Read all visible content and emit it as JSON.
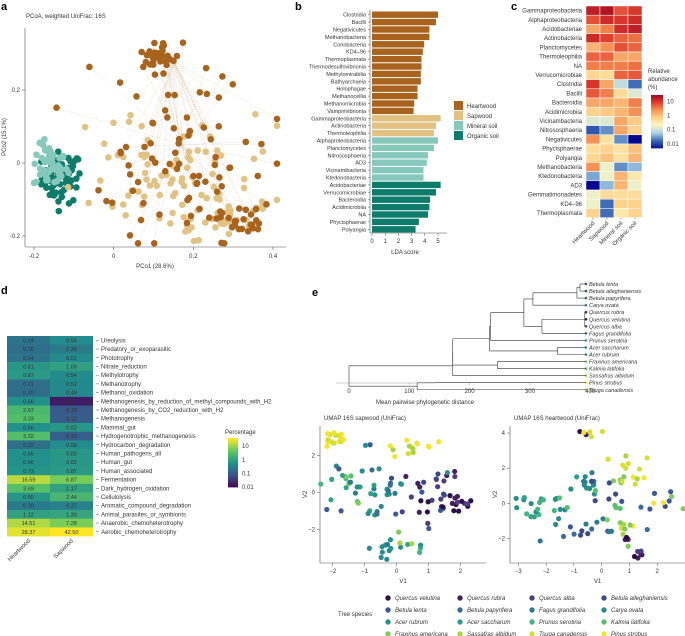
{
  "chart_data": [
    {
      "panel": "a",
      "type": "scatter",
      "title": "PCoA, weighted UniFrac: 16S",
      "xlabel": "PCo1 (28.6%)",
      "ylabel": "PCo2 (15.1%)",
      "xlim": [
        -0.22,
        0.44
      ],
      "ylim": [
        -0.23,
        0.35
      ],
      "xticks": [
        "-0.2",
        "0",
        "0.2",
        "0.4"
      ],
      "yticks": [
        "-0.2",
        "0",
        "0.2"
      ],
      "series": [
        {
          "name": "Organic soil",
          "color": "#0e7c6b",
          "cluster": {
            "cx": -0.13,
            "cy": -0.04,
            "sx": 0.025,
            "sy": 0.035,
            "n": 70
          }
        },
        {
          "name": "Mineral soil",
          "color": "#86c9bc",
          "cluster": {
            "cx": -0.16,
            "cy": -0.01,
            "sx": 0.022,
            "sy": 0.03,
            "n": 50
          }
        },
        {
          "name": "Sapwood",
          "color": "#e2c283",
          "cluster": {
            "cx": 0.12,
            "cy": -0.02,
            "sx": 0.1,
            "sy": 0.1,
            "n": 110
          }
        },
        {
          "name": "Heartwood",
          "color": "#a8631d",
          "cluster": {
            "cx": 0.17,
            "cy": 0.02,
            "sx": 0.11,
            "sy": 0.13,
            "n": 130
          }
        }
      ]
    },
    {
      "panel": "b",
      "type": "bar",
      "orientation": "horizontal",
      "xlabel": "LDA score",
      "xlim": [
        0,
        5.5
      ],
      "xticks": [
        "0",
        "1",
        "2",
        "3",
        "4",
        "5"
      ],
      "legend": [
        {
          "label": "Heartwood",
          "color": "#a8631d"
        },
        {
          "label": "Sapwood",
          "color": "#e2c283"
        },
        {
          "label": "Mineral soil",
          "color": "#86c9bc"
        },
        {
          "label": "Organic soil",
          "color": "#0e7c6b"
        }
      ],
      "legend_position": "right",
      "categories": [
        "Clostridia",
        "Bacilli",
        "Negativicutes",
        "Methanobacteria",
        "Coriobacteria",
        "KD4–96",
        "Thermoplasmata",
        "Thermodesulfovibrionia",
        "Methylomirabilia",
        "Bathyarchaeia",
        "Holophagae",
        "Methanocellia",
        "Methanomicrobia",
        "Vampirivibrionia",
        "Gammaproteobacteria",
        "Actinobacteria",
        "Thermoleophilia",
        "Alphaproteobacteria",
        "Planctomycetes",
        "Nitrososphaeria",
        "AD3",
        "Vicinamibacteria",
        "Ktedonobacteria",
        "Acidobacteriae",
        "Verrucomicrobiae",
        "Bacteroidia",
        "Acidimicrobiia",
        "NA",
        "Phycisphaerae",
        "Polyangia"
      ],
      "groups": [
        "Heartwood",
        "Heartwood",
        "Heartwood",
        "Heartwood",
        "Heartwood",
        "Heartwood",
        "Heartwood",
        "Heartwood",
        "Heartwood",
        "Heartwood",
        "Heartwood",
        "Heartwood",
        "Heartwood",
        "Heartwood",
        "Sapwood",
        "Sapwood",
        "Sapwood",
        "Mineral soil",
        "Mineral soil",
        "Mineral soil",
        "Mineral soil",
        "Mineral soil",
        "Mineral soil",
        "Organic soil",
        "Organic soil",
        "Organic soil",
        "Organic soil",
        "Organic soil",
        "Organic soil",
        "Organic soil"
      ],
      "values": [
        5.0,
        4.85,
        4.35,
        4.35,
        3.95,
        3.85,
        3.75,
        3.75,
        3.7,
        3.7,
        3.45,
        3.45,
        3.2,
        3.15,
        5.2,
        4.85,
        4.7,
        5.0,
        4.7,
        4.25,
        4.15,
        3.9,
        3.9,
        5.2,
        4.85,
        4.4,
        4.35,
        4.25,
        3.55,
        3.3
      ]
    },
    {
      "panel": "c",
      "type": "heatmap",
      "columns": [
        "Heartwood",
        "Sapwood",
        "Mineral soil",
        "Organic soil"
      ],
      "rows": [
        "Gammaproteobacteria",
        "Alphaproteobacteria",
        "Acidobacteriae",
        "Actinobacteria",
        "Planctomycetes",
        "Thermoleophilia",
        "NA",
        "Verrucomicrobiae",
        "Clostridia",
        "Bacilli",
        "Bacteroidia",
        "Acidimicrobiia",
        "Vicinambacteria",
        "Nitrososphaeria",
        "Negativicutes",
        "Phycisphaerae",
        "Polyangia",
        "Methanobacteria",
        "Ktedonobacteria",
        "AD3",
        "Gemmatimonadetes",
        "KD4–96",
        "Thermoplasmata"
      ],
      "values_percent": [
        [
          20,
          25,
          8,
          12
        ],
        [
          8,
          15,
          12,
          15
        ],
        [
          2,
          4,
          15,
          20
        ],
        [
          15,
          10,
          6,
          5
        ],
        [
          1.5,
          3,
          8,
          6
        ],
        [
          6,
          6,
          2,
          2
        ],
        [
          4,
          4,
          4,
          5
        ],
        [
          0.7,
          0.6,
          6,
          7
        ],
        [
          12,
          2,
          0.1,
          0.02
        ],
        [
          7,
          4,
          0.6,
          0.15
        ],
        [
          2,
          2,
          1.5,
          4
        ],
        [
          0.8,
          1,
          1.5,
          3
        ],
        [
          0.15,
          0.15,
          2,
          1
        ],
        [
          0.015,
          0.03,
          2,
          0.8
        ],
        [
          3,
          0.5,
          0.03,
          0.005
        ],
        [
          0.6,
          0.8,
          0.5,
          1.2
        ],
        [
          0.7,
          1.2,
          0.5,
          1.5
        ],
        [
          3,
          0.2,
          0.03,
          0.05
        ],
        [
          0.04,
          0.2,
          1.5,
          0.4
        ],
        [
          0.005,
          0.05,
          1.5,
          0.2
        ],
        [
          0.2,
          0.6,
          0.6,
          0.6
        ],
        [
          0.2,
          0.02,
          0.8,
          0.8
        ],
        [
          0.8,
          0.02,
          0.4,
          0.8
        ]
      ],
      "colorbar": {
        "title": "Relative abundance (%)",
        "ticks": [
          "10",
          "1",
          "0.1",
          "0.01"
        ],
        "scale": "log",
        "range": [
          0.005,
          30
        ]
      }
    },
    {
      "panel": "d",
      "type": "heatmap",
      "columns": [
        "Heartwood",
        "Sapwood"
      ],
      "rows": [
        "Ureolysis",
        "Predatory_or_exoparasitic",
        "Phototrophy",
        "Nitrate_reduction",
        "Methylotrophy",
        "Methanotrophy",
        "Methanol_oxidation",
        "Methanogenesis_by_reduction_of_methyl_compounds_with_H2",
        "Methanogenesis_by_CO2_reduction_with_H2",
        "Methanogenesis",
        "Mammal_gut",
        "Hydrogenotrophic_methanogenesis",
        "Hydrocarbon_degradation",
        "Human_pathogens_all",
        "Human_gut",
        "Human_associated",
        "Fermentation",
        "Dark_hydrogen_oxidation",
        "Cellulolysis",
        "Aromatic_compound_degradation",
        "Animal_parasites_or_symbionts",
        "Anaerobic_chemoheterotrophy",
        "Aerobic_chemoheterotrophy"
      ],
      "values": [
        [
          "0.24",
          "0.56"
        ],
        [
          "0.20",
          "0.30"
        ],
        [
          "0.24",
          "0.51"
        ],
        [
          "0.81",
          "1.09"
        ],
        [
          "0.87",
          "0.54"
        ],
        [
          "0.21",
          "0.52"
        ],
        [
          "0.20",
          "0.49"
        ],
        [
          "0.66",
          "0.02"
        ],
        [
          "2.67",
          "0.10"
        ],
        [
          "3.33",
          "0.12"
        ],
        [
          "0.66",
          "0.82"
        ],
        [
          "3.32",
          "0.12"
        ],
        [
          "0.22",
          "0.56"
        ],
        [
          "0.66",
          "0.83"
        ],
        [
          "0.66",
          "0.82"
        ],
        [
          "0.73",
          "0.87"
        ],
        [
          "16.59",
          "6.87"
        ],
        [
          "3.69",
          "1.17"
        ],
        [
          "0.80",
          "2.44"
        ],
        [
          "0.30",
          "0.37"
        ],
        [
          "1.12",
          "1.30"
        ],
        [
          "14.51",
          "7.28"
        ],
        [
          "28.37",
          "42.50"
        ]
      ],
      "colorbar": {
        "title": "Percentage",
        "ticks": [
          "10",
          "1",
          "0.1",
          "0.01"
        ],
        "scale": "log",
        "range": [
          0.01,
          40
        ]
      }
    },
    {
      "panel": "e-dendrogram",
      "type": "dendrogram",
      "xlabel": "Mean pairwise phylogenetic distance",
      "xticks": [
        "0",
        "100",
        "200",
        "300",
        "400"
      ],
      "leaves": [
        {
          "name": "Betula lenta",
          "color": "#3b5998"
        },
        {
          "name": "Betula alleghaniensis",
          "color": "#3d4a8a"
        },
        {
          "name": "Betula papyrifera",
          "color": "#3a6d96"
        },
        {
          "name": "Carya ovata",
          "color": "#2a8a8e"
        },
        {
          "name": "Quercus rubra",
          "color": "#45205f"
        },
        {
          "name": "Quercus velutina",
          "color": "#2d0f46"
        },
        {
          "name": "Quercus alba",
          "color": "#4e3c85"
        },
        {
          "name": "Fagus grandifolia",
          "color": "#2b7a8e"
        },
        {
          "name": "Prunus serotina",
          "color": "#40b77f"
        },
        {
          "name": "Acer saccharum",
          "color": "#2fa387"
        },
        {
          "name": "Acer rubrum",
          "color": "#26918c"
        },
        {
          "name": "Fraxinus americana",
          "color": "#80cc5a"
        },
        {
          "name": "Kalmia latifolia",
          "color": "#5cbf6d"
        },
        {
          "name": "Sassafras albidum",
          "color": "#a8d63b"
        },
        {
          "name": "Pinus strobus",
          "color": "#f3e52b"
        },
        {
          "name": "Tsuga canadensis",
          "color": "#d4df33"
        }
      ]
    },
    {
      "panel": "e-umap-sapwood",
      "type": "scatter",
      "title": "UMAP 16S sapwood (UniFrac)",
      "xlabel": "V1",
      "ylabel": "V2",
      "xlim": [
        -2.4,
        2.8
      ],
      "ylim": [
        -3.8,
        3.6
      ],
      "xticks": [
        "-2",
        "-1",
        "0",
        "1",
        "2"
      ],
      "yticks": [
        "-2",
        "0",
        "2"
      ]
    },
    {
      "panel": "e-umap-heartwood",
      "type": "scatter",
      "title": "UMAP 16S heartwood (UniFrac)",
      "xlabel": "V1",
      "ylabel": "V2",
      "xlim": [
        -3.3,
        3.0
      ],
      "ylim": [
        -3.4,
        4.4
      ],
      "xticks": [
        "-3",
        "-2",
        "-1",
        "0",
        "1",
        "2"
      ],
      "yticks": [
        "-2",
        "0",
        "2",
        "4"
      ]
    }
  ],
  "labels": {
    "a": "a",
    "b": "b",
    "c": "c",
    "d": "d",
    "e": "e"
  },
  "species_legend": {
    "title": "Tree species",
    "items": [
      {
        "name": "Quercus velutina",
        "color": "#2d0f46"
      },
      {
        "name": "Quercus rubra",
        "color": "#45205f"
      },
      {
        "name": "Quercus alba",
        "color": "#4e3c85"
      },
      {
        "name": "Betula alleghaniensis",
        "color": "#3d4a8a"
      },
      {
        "name": "Betula lenta",
        "color": "#3b5998"
      },
      {
        "name": "Betula papyrifera",
        "color": "#3a6d96"
      },
      {
        "name": "Fagus grandifolia",
        "color": "#2b7a8e"
      },
      {
        "name": "Carya ovata",
        "color": "#2a8a8e"
      },
      {
        "name": "Acer rubrum",
        "color": "#26918c"
      },
      {
        "name": "Acer saccharum",
        "color": "#2fa387"
      },
      {
        "name": "Prunus serotina",
        "color": "#40b77f"
      },
      {
        "name": "Kalmia latifolia",
        "color": "#5cbf6d"
      },
      {
        "name": "Fraxinus americana",
        "color": "#80cc5a"
      },
      {
        "name": "Sassafras albidum",
        "color": "#a8d63b"
      },
      {
        "name": "Tsuga canadensis",
        "color": "#d4df33"
      },
      {
        "name": "Pinus strobus",
        "color": "#f3e52b"
      }
    ]
  }
}
